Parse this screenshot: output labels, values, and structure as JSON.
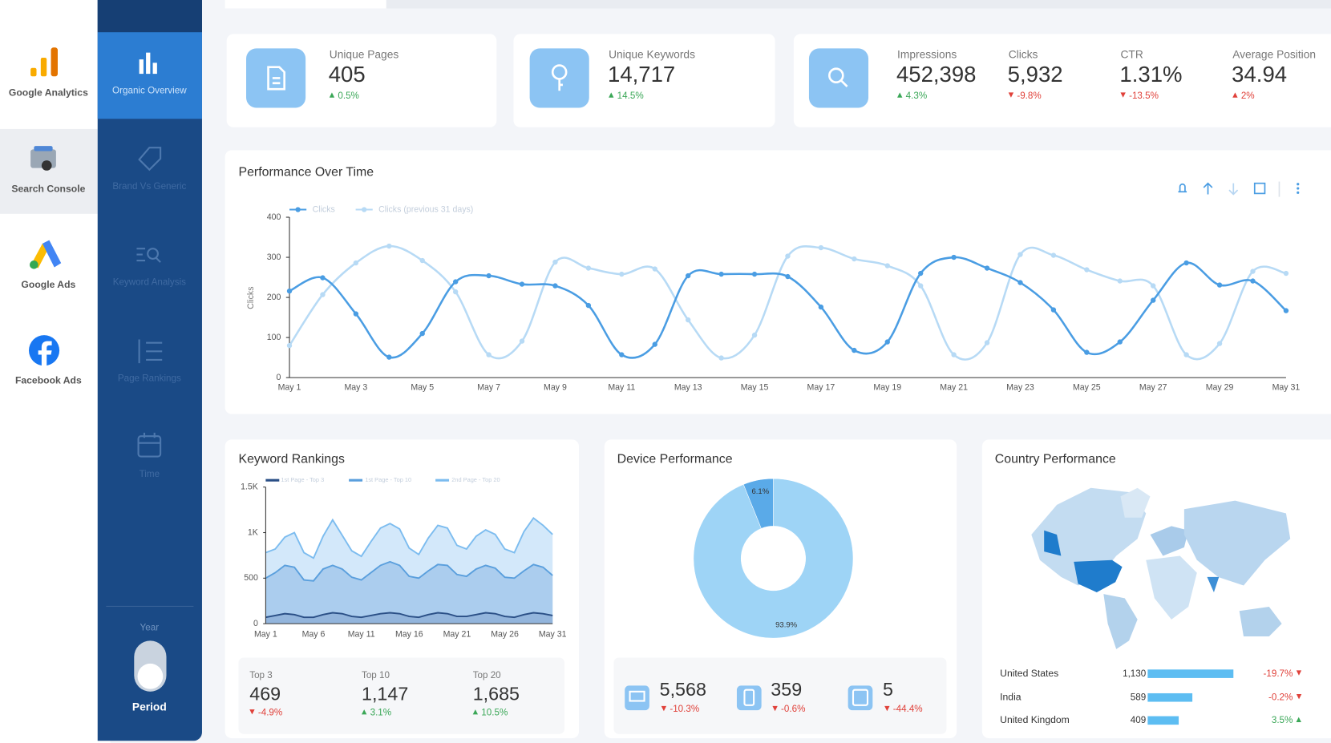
{
  "apps": [
    "Google Analytics",
    "Search Console",
    "Google Ads",
    "Facebook Ads"
  ],
  "nav": [
    "Organic Overview",
    "Brand Vs Generic",
    "Keyword Analysis",
    "Page Rankings",
    "Time"
  ],
  "period_toggle": {
    "label": "Year",
    "value": "Period"
  },
  "kpis": [
    {
      "label": "Unique Pages",
      "value": "405",
      "change": "0.5%"
    },
    {
      "label": "Unique Keywords",
      "value": "14,717",
      "change": "14.5%"
    },
    {
      "label": "Impressions",
      "value": "452,398",
      "change": "4.3%"
    },
    {
      "label": "Clicks",
      "value": "5,932",
      "change": "-9.8%"
    },
    {
      "label": "CTR",
      "value": "1.31%",
      "change": "-13.5%"
    },
    {
      "label": "Average Position",
      "value": "34.94",
      "change": "2%"
    }
  ],
  "chart_data": [
    {
      "type": "line",
      "title": "Performance Over Time",
      "y_label": "Clicks",
      "categories": [
        "May 1",
        null,
        "May 3",
        null,
        "May 5",
        null,
        "May 7",
        null,
        "May 9",
        null,
        "May 11",
        null,
        "May 13",
        null,
        "May 15",
        null,
        "May 17",
        null,
        "May 19",
        null,
        "May 21",
        null,
        "May 23",
        null,
        "May 25",
        null,
        "May 27",
        null,
        "May 29",
        null,
        "May 31"
      ],
      "series": [
        {
          "name": "Clicks",
          "color": "#4a9de3",
          "values": [
            216,
            249,
            159,
            51,
            110,
            239,
            254,
            233,
            229,
            180,
            57,
            83,
            254,
            258,
            258,
            252,
            176,
            68,
            89,
            260,
            300,
            273,
            237,
            169,
            63,
            89,
            193,
            286,
            231,
            241,
            167
          ]
        },
        {
          "name": "Clicks (previous 31 days)",
          "color": "#b7daf5",
          "values": [
            80,
            207,
            286,
            328,
            292,
            214,
            57,
            91,
            288,
            273,
            258,
            271,
            144,
            49,
            106,
            303,
            324,
            296,
            279,
            229,
            57,
            87,
            307,
            305,
            269,
            241,
            229,
            57,
            85,
            265,
            260
          ]
        }
      ],
      "ylim": [
        0,
        400
      ],
      "yticks": [
        0,
        100,
        200,
        300,
        400
      ],
      "smooth": true
    },
    {
      "type": "area",
      "title": "Keyword Rankings",
      "categories": [
        "May 1",
        null,
        null,
        null,
        null,
        "May 6",
        null,
        null,
        null,
        null,
        "May 11",
        null,
        null,
        null,
        null,
        "May 16",
        null,
        null,
        null,
        null,
        "May 21",
        null,
        null,
        null,
        null,
        "May 26",
        null,
        null,
        null,
        null,
        "May 31"
      ],
      "series": [
        {
          "name": "2nd Page - Top 20",
          "color": "#7cbcef",
          "fill": "#d3e8fa",
          "values": [
            780,
            820,
            950,
            1000,
            780,
            720,
            960,
            1140,
            970,
            800,
            740,
            900,
            1050,
            1100,
            1040,
            830,
            760,
            940,
            1080,
            1050,
            860,
            820,
            960,
            1030,
            980,
            820,
            780,
            1010,
            1160,
            1080,
            980
          ]
        },
        {
          "name": "1st Page - Top 10",
          "color": "#5a9fdd",
          "fill": "#abcdee",
          "values": [
            500,
            560,
            640,
            620,
            480,
            470,
            600,
            640,
            600,
            510,
            480,
            560,
            640,
            680,
            640,
            520,
            500,
            580,
            650,
            640,
            540,
            520,
            600,
            640,
            610,
            510,
            500,
            580,
            650,
            620,
            530
          ]
        },
        {
          "name": "1st Page - Top 3",
          "color": "#2a4f86",
          "fill": "#93b5dc",
          "values": [
            70,
            90,
            110,
            100,
            70,
            70,
            100,
            120,
            110,
            80,
            70,
            90,
            110,
            120,
            110,
            80,
            70,
            100,
            120,
            110,
            80,
            80,
            100,
            120,
            110,
            80,
            70,
            100,
            120,
            110,
            90
          ]
        }
      ],
      "ylim": [
        0,
        1500
      ],
      "yticks": [
        0,
        500,
        {
          "value": 1000,
          "label": "1K"
        },
        {
          "value": 1500,
          "label": "1.5K"
        }
      ]
    },
    {
      "type": "pie",
      "title": "Device Performance",
      "donut": true,
      "values": [
        93.9,
        6.1
      ],
      "value_labels": [
        "93.9%",
        "6.1%"
      ],
      "colors": [
        "#9ed4f6",
        "#5aaae8"
      ]
    },
    {
      "type": "bar",
      "title": "Country Performance",
      "orientation": "horizontal",
      "categories": [
        "United States",
        "India",
        "United Kingdom"
      ],
      "values": [
        1130,
        589,
        409
      ],
      "value_labels": [
        "1,130",
        "589",
        "409"
      ],
      "changes": [
        "-19.7%",
        "-0.2%",
        "3.5%"
      ],
      "color": "#5dbdf2"
    }
  ],
  "keyword_stats": [
    {
      "label": "Top 3",
      "value": "469",
      "change": "-4.9%"
    },
    {
      "label": "Top 10",
      "value": "1,147",
      "change": "3.1%"
    },
    {
      "label": "Top 20",
      "value": "1,685",
      "change": "10.5%"
    }
  ],
  "device_stats": [
    {
      "value": "5,568",
      "change": "-10.3%"
    },
    {
      "value": "359",
      "change": "-0.6%"
    },
    {
      "value": "5",
      "change": "-44.4%"
    }
  ]
}
